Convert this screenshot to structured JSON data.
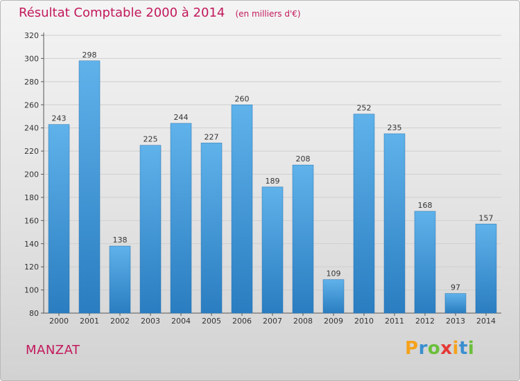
{
  "chart_data": {
    "type": "bar",
    "title": "Résultat Comptable 2000 à 2014",
    "subtitle": "(en milliers d'€)",
    "categories": [
      "2000",
      "2001",
      "2002",
      "2003",
      "2004",
      "2005",
      "2006",
      "2007",
      "2008",
      "2009",
      "2010",
      "2011",
      "2012",
      "2013",
      "2014"
    ],
    "values": [
      243,
      298,
      138,
      225,
      244,
      227,
      260,
      189,
      208,
      109,
      252,
      235,
      168,
      97,
      157
    ],
    "ylim": [
      80,
      320
    ],
    "yticks": [
      80,
      100,
      120,
      140,
      160,
      180,
      200,
      220,
      240,
      260,
      280,
      300,
      320
    ],
    "grid": true,
    "bar_color": "#3d93d3",
    "xlabel": "",
    "ylabel": ""
  },
  "location": "MANZAT",
  "logo": {
    "letters": [
      "P",
      "r",
      "o",
      "x",
      "i",
      "t",
      "i"
    ],
    "colors": [
      "#f5a21b",
      "#3b8fd0",
      "#6bbf3a",
      "#e53935",
      "#f5a21b",
      "#3b8fd0",
      "#6bbf3a"
    ]
  }
}
